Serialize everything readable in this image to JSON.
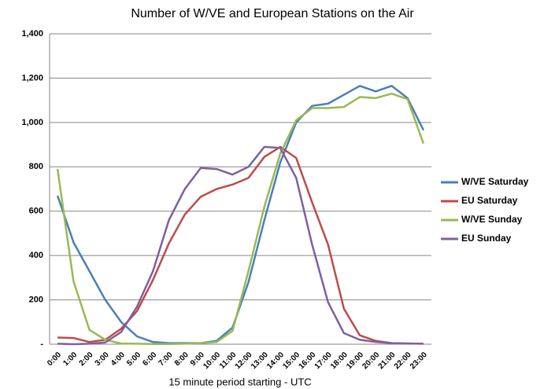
{
  "chart_data": {
    "type": "line",
    "title": "Number of W/VE and European Stations on the Air",
    "x_label": "15 minute period starting - UTC",
    "categories": [
      "0:00",
      "1:00",
      "2:00",
      "3:00",
      "4:00",
      "5:00",
      "6:00",
      "7:00",
      "8:00",
      "9:00",
      "10:00",
      "11:00",
      "12:00",
      "13:00",
      "14:00",
      "15:00",
      "16:00",
      "17:00",
      "18:00",
      "19:00",
      "20:00",
      "21:00",
      "22:00",
      "23:00"
    ],
    "series": [
      {
        "name": "W/VE Saturday",
        "color": "#4a7ebb",
        "values": [
          670,
          460,
          330,
          200,
          100,
          35,
          10,
          5,
          5,
          5,
          15,
          75,
          280,
          560,
          820,
          1000,
          1075,
          1085,
          1125,
          1165,
          1140,
          1165,
          1110,
          965
        ]
      },
      {
        "name": "EU Saturday",
        "color": "#be4b48",
        "values": [
          30,
          28,
          10,
          20,
          70,
          150,
          290,
          455,
          585,
          665,
          700,
          720,
          750,
          845,
          890,
          840,
          640,
          450,
          160,
          40,
          15,
          5,
          3,
          2
        ]
      },
      {
        "name": "W/VE Sunday",
        "color": "#98b954",
        "values": [
          790,
          285,
          65,
          20,
          3,
          2,
          1,
          1,
          2,
          5,
          10,
          60,
          330,
          620,
          860,
          1010,
          1065,
          1065,
          1070,
          1115,
          1110,
          1130,
          1105,
          905
        ]
      },
      {
        "name": "EU Sunday",
        "color": "#7d60a0",
        "values": [
          2,
          0,
          2,
          8,
          55,
          170,
          330,
          560,
          700,
          795,
          790,
          765,
          800,
          890,
          885,
          750,
          450,
          190,
          50,
          20,
          10,
          5,
          3,
          2
        ]
      }
    ],
    "ylim": [
      0,
      1400
    ],
    "yticks": [
      {
        "value": 0,
        "label": "-"
      },
      200,
      400,
      600,
      800,
      {
        "value": 1000,
        "label": "1,000"
      },
      {
        "value": 1200,
        "label": "1,200"
      },
      {
        "value": 1400,
        "label": "1,400"
      }
    ],
    "grid": true,
    "legend": "right"
  }
}
